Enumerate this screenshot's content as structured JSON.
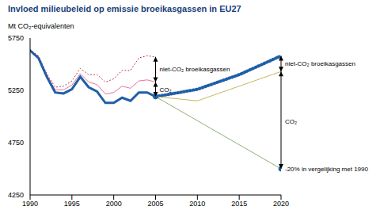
{
  "chart_data": {
    "type": "line",
    "title": "Invloed milieubeleid op emissie broeikasgassen in EU27",
    "y_label": "Mt CO₂-equivalenten",
    "x": [
      1990,
      1991,
      1992,
      1993,
      1994,
      1995,
      1996,
      1997,
      1998,
      1999,
      2000,
      2001,
      2002,
      2003,
      2004,
      2005,
      2010,
      2015,
      2020
    ],
    "series": [
      {
        "color": "#c0283c",
        "line_style": "dotted",
        "values": [
          5640,
          5580,
          5410,
          5280,
          5290,
          5340,
          5460,
          5400,
          5400,
          5330,
          5360,
          5440,
          5440,
          5560,
          5580,
          5570,
          null,
          null,
          null
        ]
      },
      {
        "color": "#e8739a",
        "line_style": "solid",
        "values": [
          5640,
          5570,
          5395,
          5255,
          5255,
          5300,
          5410,
          5330,
          5305,
          5215,
          5230,
          5290,
          5270,
          5340,
          5350,
          5330,
          null,
          null,
          null
        ]
      },
      {
        "color": "#1f5fa8",
        "line_style": "solid",
        "values": [
          5630,
          5560,
          5380,
          5230,
          5220,
          5260,
          5380,
          5280,
          5240,
          5130,
          5130,
          5180,
          5150,
          5230,
          5230,
          5190,
          null,
          null,
          null
        ]
      },
      {
        "color": "#1f5fa8",
        "line_style": "dotted",
        "values": [
          null,
          null,
          null,
          null,
          null,
          null,
          null,
          null,
          null,
          null,
          null,
          null,
          null,
          null,
          null,
          5190,
          5260,
          5400,
          5580
        ]
      },
      {
        "color": "#c8b560",
        "line_style": "solid",
        "values": [
          null,
          null,
          null,
          null,
          null,
          null,
          null,
          null,
          null,
          null,
          null,
          null,
          null,
          null,
          null,
          5190,
          5150,
          null,
          5430
        ]
      },
      {
        "color": "#8fb07a",
        "line_style": "solid",
        "marker": "dot",
        "values": [
          null,
          null,
          null,
          null,
          null,
          null,
          null,
          null,
          null,
          null,
          null,
          null,
          null,
          null,
          null,
          5190,
          null,
          null,
          4500
        ]
      }
    ],
    "xlim": [
      1990,
      2020
    ],
    "xticks": [
      1990,
      1995,
      2000,
      2005,
      2010,
      2015,
      2020
    ],
    "ylim": [
      4250,
      5750
    ],
    "yticks": [
      4250,
      4750,
      5250,
      5750
    ],
    "grid": false,
    "annotations": [
      {
        "text": "niet-CO₂ broeikasgassen",
        "x": 2005,
        "y": 5450
      },
      {
        "text": "CO₂",
        "x": 2005,
        "y": 5260
      },
      {
        "text": "niet-CO₂ broeikasgassen",
        "x": 2020,
        "y": 5510
      },
      {
        "text": "CO₂",
        "x": 2020,
        "y": 4950
      },
      {
        "text": "-20% in vergelijking met 1990",
        "x": 2020,
        "y": 4500
      }
    ]
  }
}
